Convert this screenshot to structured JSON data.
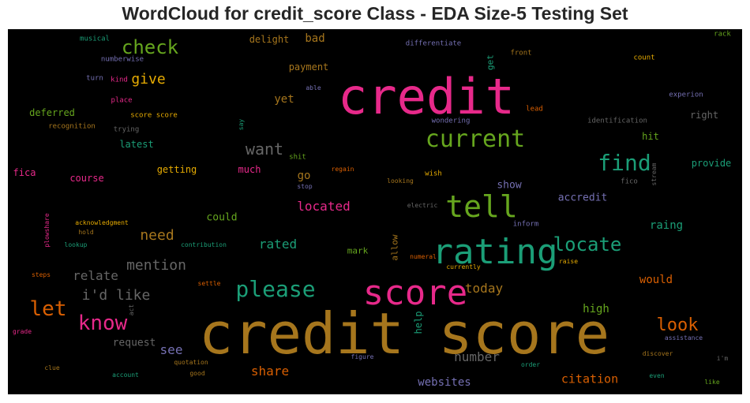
{
  "title": "WordCloud for credit_score Class - EDA Size-5 Testing Set",
  "chart_data": {
    "type": "wordcloud",
    "background": "#000000",
    "palette": [
      "#e7298a",
      "#d95f02",
      "#1b9e77",
      "#7570b3",
      "#66a61e",
      "#e6ab02",
      "#a6761d",
      "#666666"
    ],
    "words": [
      {
        "text": "credit score",
        "weight": 100,
        "color": "#a6761d"
      },
      {
        "text": "credit",
        "weight": 90,
        "color": "#e7298a"
      },
      {
        "text": "rating",
        "weight": 72,
        "color": "#1b9e77"
      },
      {
        "text": "score",
        "weight": 70,
        "color": "#e7298a"
      },
      {
        "text": "tell",
        "weight": 62,
        "color": "#66a61e"
      },
      {
        "text": "current",
        "weight": 52,
        "color": "#66a61e"
      },
      {
        "text": "please",
        "weight": 48,
        "color": "#1b9e77"
      },
      {
        "text": "find",
        "weight": 44,
        "color": "#1b9e77"
      },
      {
        "text": "locate",
        "weight": 40,
        "color": "#1b9e77"
      },
      {
        "text": "know",
        "weight": 38,
        "color": "#e7298a"
      },
      {
        "text": "let",
        "weight": 38,
        "color": "#d95f02"
      },
      {
        "text": "check",
        "weight": 36,
        "color": "#66a61e"
      },
      {
        "text": "look",
        "weight": 34,
        "color": "#d95f02"
      },
      {
        "text": "want",
        "weight": 32,
        "color": "#666666"
      },
      {
        "text": "i'd like",
        "weight": 30,
        "color": "#666666"
      },
      {
        "text": "mention",
        "weight": 28,
        "color": "#666666"
      },
      {
        "text": "need",
        "weight": 26,
        "color": "#a6761d"
      },
      {
        "text": "give",
        "weight": 26,
        "color": "#e6ab02"
      },
      {
        "text": "relate",
        "weight": 25,
        "color": "#666666"
      },
      {
        "text": "located",
        "weight": 25,
        "color": "#e7298a"
      },
      {
        "text": "rated",
        "weight": 25,
        "color": "#1b9e77"
      },
      {
        "text": "share",
        "weight": 25,
        "color": "#d95f02"
      },
      {
        "text": "today",
        "weight": 25,
        "color": "#a6761d"
      },
      {
        "text": "number",
        "weight": 24,
        "color": "#666666"
      },
      {
        "text": "see",
        "weight": 24,
        "color": "#7570b3"
      },
      {
        "text": "citation",
        "weight": 22,
        "color": "#d95f02"
      },
      {
        "text": "websites",
        "weight": 22,
        "color": "#7570b3"
      },
      {
        "text": "would",
        "weight": 21,
        "color": "#d95f02"
      },
      {
        "text": "request",
        "weight": 21,
        "color": "#666666"
      },
      {
        "text": "high",
        "weight": 21,
        "color": "#66a61e"
      },
      {
        "text": "raing",
        "weight": 21,
        "color": "#1b9e77"
      },
      {
        "text": "show",
        "weight": 20,
        "color": "#7570b3"
      },
      {
        "text": "accredit",
        "weight": 20,
        "color": "#7570b3"
      },
      {
        "text": "could",
        "weight": 19,
        "color": "#66a61e"
      },
      {
        "text": "go",
        "weight": 19,
        "color": "#a6761d"
      },
      {
        "text": "yet",
        "weight": 19,
        "color": "#a6761d"
      },
      {
        "text": "bad",
        "weight": 19,
        "color": "#a6761d"
      },
      {
        "text": "payment",
        "weight": 18,
        "color": "#a6761d"
      },
      {
        "text": "delight",
        "weight": 18,
        "color": "#a6761d"
      },
      {
        "text": "getting",
        "weight": 18,
        "color": "#e6ab02"
      },
      {
        "text": "much",
        "weight": 18,
        "color": "#e7298a"
      },
      {
        "text": "course",
        "weight": 18,
        "color": "#e7298a"
      },
      {
        "text": "fica",
        "weight": 18,
        "color": "#e7298a"
      },
      {
        "text": "latest",
        "weight": 17,
        "color": "#1b9e77"
      },
      {
        "text": "deferred",
        "weight": 17,
        "color": "#66a61e"
      },
      {
        "text": "right",
        "weight": 17,
        "color": "#666666"
      },
      {
        "text": "provide",
        "weight": 17,
        "color": "#1b9e77"
      },
      {
        "text": "hit",
        "weight": 17,
        "color": "#66a61e"
      },
      {
        "text": "mark",
        "weight": 16,
        "color": "#66a61e"
      },
      {
        "text": "help",
        "weight": 16,
        "color": "#1b9e77"
      },
      {
        "text": "allow",
        "weight": 15,
        "color": "#a6761d"
      },
      {
        "text": "get",
        "weight": 15,
        "color": "#1b9e77"
      },
      {
        "text": "musical",
        "weight": 13,
        "color": "#1b9e77"
      },
      {
        "text": "numberwise",
        "weight": 13,
        "color": "#7570b3"
      },
      {
        "text": "turn",
        "weight": 13,
        "color": "#7570b3"
      },
      {
        "text": "kind",
        "weight": 13,
        "color": "#e7298a"
      },
      {
        "text": "place",
        "weight": 13,
        "color": "#e7298a"
      },
      {
        "text": "score score",
        "weight": 13,
        "color": "#e6ab02"
      },
      {
        "text": "recognition",
        "weight": 13,
        "color": "#a6761d"
      },
      {
        "text": "trying",
        "weight": 13,
        "color": "#666666"
      },
      {
        "text": "say",
        "weight": 12,
        "color": "#1b9e77"
      },
      {
        "text": "able",
        "weight": 12,
        "color": "#7570b3"
      },
      {
        "text": "differentiate",
        "weight": 13,
        "color": "#7570b3"
      },
      {
        "text": "front",
        "weight": 13,
        "color": "#a6761d"
      },
      {
        "text": "count",
        "weight": 13,
        "color": "#e6ab02"
      },
      {
        "text": "rack",
        "weight": 13,
        "color": "#66a61e"
      },
      {
        "text": "lead",
        "weight": 13,
        "color": "#d95f02"
      },
      {
        "text": "experion",
        "weight": 13,
        "color": "#7570b3"
      },
      {
        "text": "wondering",
        "weight": 13,
        "color": "#7570b3"
      },
      {
        "text": "identification",
        "weight": 13,
        "color": "#666666"
      },
      {
        "text": "shit",
        "weight": 12,
        "color": "#66a61e"
      },
      {
        "text": "regain",
        "weight": 12,
        "color": "#d95f02"
      },
      {
        "text": "stop",
        "weight": 12,
        "color": "#7570b3"
      },
      {
        "text": "wish",
        "weight": 13,
        "color": "#e6ab02"
      },
      {
        "text": "looking",
        "weight": 12,
        "color": "#a6761d"
      },
      {
        "text": "stream",
        "weight": 12,
        "color": "#666666"
      },
      {
        "text": "fico",
        "weight": 13,
        "color": "#666666"
      },
      {
        "text": "electric",
        "weight": 12,
        "color": "#666666"
      },
      {
        "text": "inform",
        "weight": 13,
        "color": "#7570b3"
      },
      {
        "text": "numeral",
        "weight": 12,
        "color": "#d95f02"
      },
      {
        "text": "currently",
        "weight": 12,
        "color": "#e6ab02"
      },
      {
        "text": "raise",
        "weight": 12,
        "color": "#e6ab02"
      },
      {
        "text": "plowshare",
        "weight": 12,
        "color": "#e7298a"
      },
      {
        "text": "acknowledgment",
        "weight": 12,
        "color": "#e6ab02"
      },
      {
        "text": "hold",
        "weight": 12,
        "color": "#a6761d"
      },
      {
        "text": "lookup",
        "weight": 12,
        "color": "#1b9e77"
      },
      {
        "text": "contribution",
        "weight": 12,
        "color": "#1b9e77"
      },
      {
        "text": "steps",
        "weight": 12,
        "color": "#d95f02"
      },
      {
        "text": "settle",
        "weight": 12,
        "color": "#d95f02"
      },
      {
        "text": "act",
        "weight": 12,
        "color": "#666666"
      },
      {
        "text": "grade",
        "weight": 12,
        "color": "#e7298a"
      },
      {
        "text": "clue",
        "weight": 12,
        "color": "#a6761d"
      },
      {
        "text": "quotation",
        "weight": 12,
        "color": "#a6761d"
      },
      {
        "text": "account",
        "weight": 12,
        "color": "#1b9e77"
      },
      {
        "text": "good",
        "weight": 12,
        "color": "#a6761d"
      },
      {
        "text": "figure",
        "weight": 12,
        "color": "#7570b3"
      },
      {
        "text": "order",
        "weight": 12,
        "color": "#1b9e77"
      },
      {
        "text": "discover",
        "weight": 12,
        "color": "#a6761d"
      },
      {
        "text": "assistance",
        "weight": 12,
        "color": "#7570b3"
      },
      {
        "text": "even",
        "weight": 12,
        "color": "#1b9e77"
      },
      {
        "text": "like",
        "weight": 12,
        "color": "#66a61e"
      },
      {
        "text": "i'm",
        "weight": 12,
        "color": "#666666"
      }
    ]
  }
}
